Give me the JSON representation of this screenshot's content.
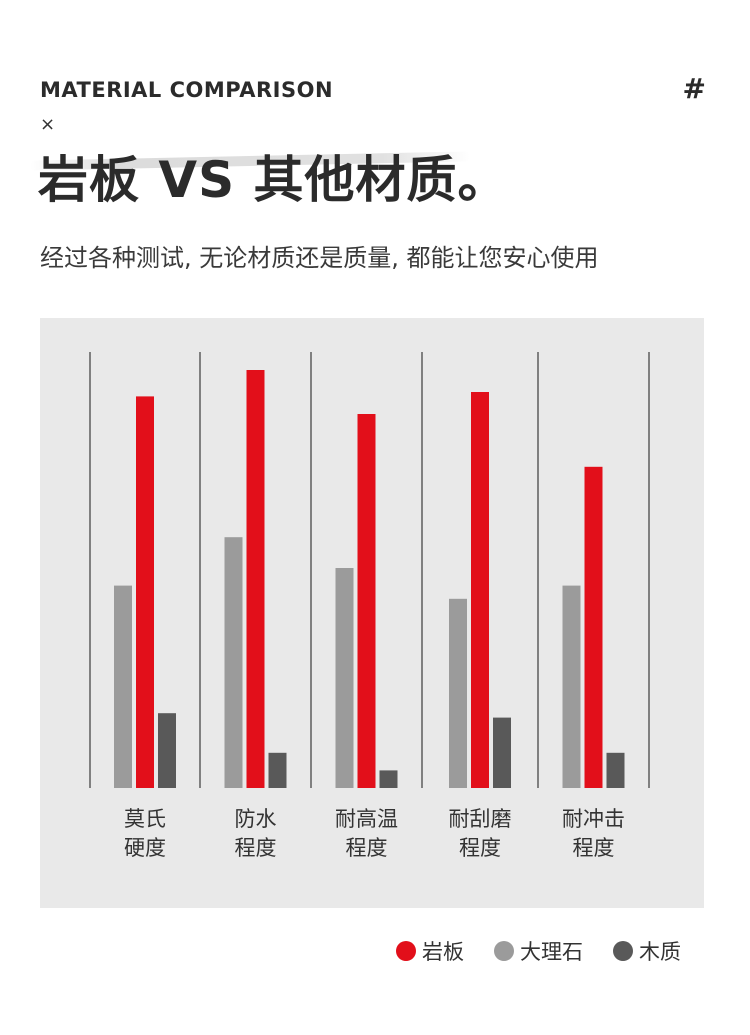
{
  "header": {
    "eyebrow": "MATERIAL COMPARISON",
    "hash": "#",
    "cross": "×",
    "headline": "岩板 VS 其他材质。",
    "subtitle": "经过各种测试, 无论材质还是质量, 都能让您安心使用"
  },
  "colors": {
    "panel_bg": "#e9e9e9",
    "rock_slab": "#e20f1a",
    "marble": "#9b9b9b",
    "wood": "#595959",
    "gridline": "#3a3a3a"
  },
  "chart_data": {
    "type": "bar",
    "categories": [
      {
        "line1": "莫氏",
        "line2": "硬度"
      },
      {
        "line1": "防水",
        "line2": "程度"
      },
      {
        "line1": "耐高温",
        "line2": "程度"
      },
      {
        "line1": "耐刮磨",
        "line2": "程度"
      },
      {
        "line1": "耐冲击",
        "line2": "程度"
      }
    ],
    "series": [
      {
        "name": "大理石",
        "color": "#9b9b9b",
        "values": [
          46,
          57,
          50,
          43,
          46
        ]
      },
      {
        "name": "岩板",
        "color": "#e20f1a",
        "values": [
          89,
          95,
          85,
          90,
          73
        ]
      },
      {
        "name": "木质",
        "color": "#595959",
        "values": [
          17,
          8,
          4,
          16,
          8
        ]
      }
    ],
    "ylim": [
      0,
      100
    ],
    "grid": "vertical separators",
    "legend_position": "bottom-right"
  },
  "legend": [
    {
      "label": "岩板",
      "color": "#e20f1a"
    },
    {
      "label": "大理石",
      "color": "#9b9b9b"
    },
    {
      "label": "木质",
      "color": "#595959"
    }
  ]
}
